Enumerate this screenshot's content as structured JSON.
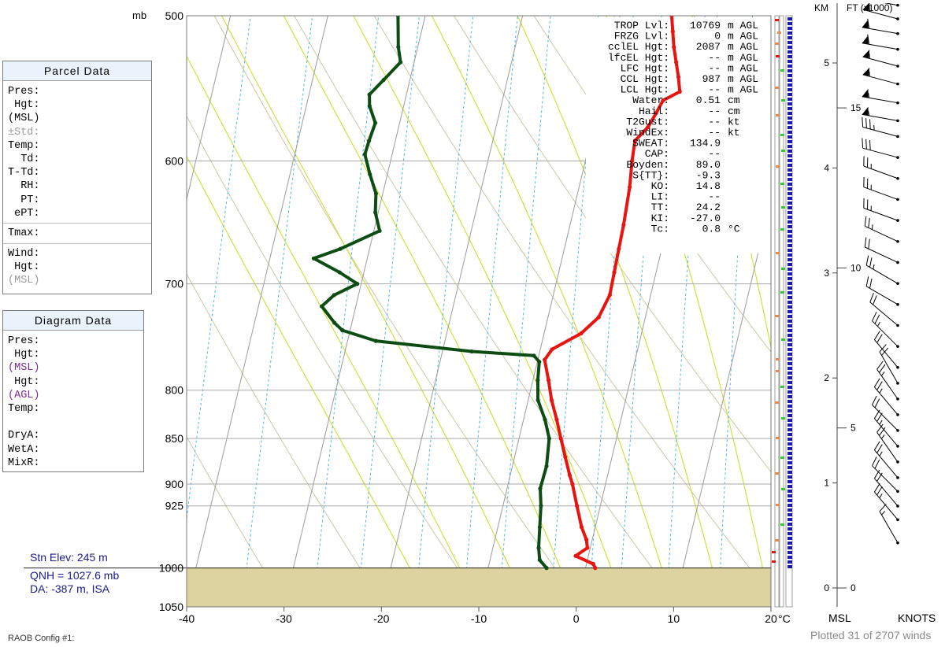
{
  "parcel_panel": {
    "title": "Parcel Data",
    "rows": [
      "Pres:",
      " Hgt:",
      "(MSL)",
      "±Std:",
      "Temp:",
      "  Td:",
      "T-Td:",
      "  RH:",
      "  PT:",
      " ePT:"
    ],
    "tmax": "Tmax:",
    "wind_rows": [
      "Wind:",
      " Hgt:",
      "(MSL)"
    ]
  },
  "diagram_panel": {
    "title": "Diagram Data",
    "rows": [
      "Pres:",
      " Hgt:",
      "(MSL)",
      " Hgt:",
      "(AGL)",
      "Temp:",
      "",
      "DryA:",
      "WetA:",
      "MixR:"
    ]
  },
  "station": {
    "elev": "Stn Elev: 245 m",
    "qnh": "QNH = 1027.6 mb",
    "da": "DA: -387 m, ISA"
  },
  "footer": {
    "config": "RAOB Config #1:",
    "plotted": "Plotted 31 of 2707 winds"
  },
  "colors": {
    "temperature": "#e8140f",
    "dewpoint": "#0d4d14",
    "ground": "#ddd3a0",
    "isobar": "#a9a9a9",
    "isotherm": "#9b9b9b",
    "dry_adiabat": "#c9c9a6",
    "moist_adiabat": "#cfe02c",
    "mixing_ratio": "#4db8e8",
    "station_text": "#1b1b8c",
    "highlight_purple": "#7d2a98"
  },
  "indices": [
    {
      "label": "TROP Lvl:",
      "value": "10769",
      "unit": "m AGL"
    },
    {
      "label": "FRZG Lvl:",
      "value": "0",
      "unit": "m AGL"
    },
    {
      "label": "cclEL Hgt:",
      "value": "2087",
      "unit": "m AGL"
    },
    {
      "label": "lfcEL Hgt:",
      "value": "--",
      "unit": "m AGL"
    },
    {
      "label": "LFC Hgt:",
      "value": "--",
      "unit": "m AGL"
    },
    {
      "label": "CCL Hgt:",
      "value": "987",
      "unit": "m AGL"
    },
    {
      "label": "LCL Hgt:",
      "value": "--",
      "unit": "m AGL"
    },
    {
      "label": "Water:",
      "value": "0.51",
      "unit": "cm"
    },
    {
      "label": "Hail:",
      "value": "--",
      "unit": "cm"
    },
    {
      "label": "T2Gust:",
      "value": "--",
      "unit": "kt"
    },
    {
      "label": "WindEx:",
      "value": "--",
      "unit": "kt"
    },
    {
      "label": "SWEAT:",
      "value": "134.9",
      "unit": ""
    },
    {
      "label": "CAP:",
      "value": "--",
      "unit": ""
    },
    {
      "label": "Boyden:",
      "value": "89.0",
      "unit": ""
    },
    {
      "label": "S{TT}:",
      "value": "-9.3",
      "unit": ""
    },
    {
      "label": "KO:",
      "value": "14.8",
      "unit": ""
    },
    {
      "label": "LI:",
      "value": "--",
      "unit": ""
    },
    {
      "label": "TT:",
      "value": "24.2",
      "unit": ""
    },
    {
      "label": "KI:",
      "value": "-27.0",
      "unit": ""
    },
    {
      "label": "Tc:",
      "value": "0.8",
      "unit": "°C"
    }
  ],
  "chart_data": {
    "type": "line",
    "title": "",
    "x_axis": {
      "unit_label": "°C",
      "ticks": [
        -40,
        -30,
        -20,
        -10,
        0,
        10,
        20
      ],
      "range": [
        -40,
        20
      ]
    },
    "y_axis": {
      "unit_label": "mb",
      "ticks": [
        500,
        600,
        700,
        800,
        850,
        900,
        925,
        1000,
        1050
      ],
      "range": [
        500,
        1050
      ],
      "scale": "log"
    },
    "skew_per_decade_pressure": 45,
    "surface_pressure": 1000,
    "series": [
      {
        "role": "temperature",
        "color": "#e8140f",
        "points": [
          [
            500,
            -4.7
          ],
          [
            510,
            -4.2
          ],
          [
            520,
            -3.7
          ],
          [
            530,
            -3.1
          ],
          [
            540,
            -2.5
          ],
          [
            550,
            -2.0
          ],
          [
            556,
            -3.5
          ],
          [
            565,
            -3.9
          ],
          [
            575,
            -4.4
          ],
          [
            585,
            -5.4
          ],
          [
            600,
            -5.2
          ],
          [
            620,
            -4.8
          ],
          [
            650,
            -4.5
          ],
          [
            670,
            -4.4
          ],
          [
            690,
            -4.3
          ],
          [
            710,
            -4.2
          ],
          [
            730,
            -4.8
          ],
          [
            745,
            -6.2
          ],
          [
            760,
            -8.8
          ],
          [
            770,
            -9.3
          ],
          [
            790,
            -8.4
          ],
          [
            810,
            -7.6
          ],
          [
            830,
            -6.6
          ],
          [
            850,
            -5.7
          ],
          [
            870,
            -4.8
          ],
          [
            890,
            -3.9
          ],
          [
            900,
            -3.4
          ],
          [
            925,
            -2.4
          ],
          [
            950,
            -1.4
          ],
          [
            965,
            -0.6
          ],
          [
            975,
            -0.3
          ],
          [
            985,
            -1.3
          ],
          [
            995,
            0.7
          ],
          [
            1000,
            1.0
          ]
        ]
      },
      {
        "role": "dewpoint",
        "color": "#0d4d14",
        "points": [
          [
            500,
            -32.8
          ],
          [
            520,
            -32.0
          ],
          [
            530,
            -31.4
          ],
          [
            542,
            -32.7
          ],
          [
            552,
            -33.8
          ],
          [
            560,
            -33.5
          ],
          [
            572,
            -32.5
          ],
          [
            585,
            -32.7
          ],
          [
            595,
            -32.8
          ],
          [
            610,
            -31.8
          ],
          [
            625,
            -30.7
          ],
          [
            640,
            -30.3
          ],
          [
            655,
            -29.4
          ],
          [
            670,
            -33.0
          ],
          [
            678,
            -35.5
          ],
          [
            690,
            -32.5
          ],
          [
            700,
            -30.4
          ],
          [
            710,
            -32.5
          ],
          [
            720,
            -33.5
          ],
          [
            735,
            -31.8
          ],
          [
            742,
            -30.8
          ],
          [
            752,
            -27.1
          ],
          [
            762,
            -17.0
          ],
          [
            766,
            -10.5
          ],
          [
            772,
            -9.8
          ],
          [
            790,
            -9.5
          ],
          [
            810,
            -9.0
          ],
          [
            830,
            -7.8
          ],
          [
            850,
            -6.9
          ],
          [
            880,
            -6.5
          ],
          [
            905,
            -6.6
          ],
          [
            925,
            -6.1
          ],
          [
            950,
            -5.7
          ],
          [
            975,
            -5.3
          ],
          [
            990,
            -4.9
          ],
          [
            1000,
            -4.0
          ]
        ]
      }
    ]
  },
  "wind_panel": {
    "left_axis_label": "KM",
    "right_axis_label": "FT (x1000)",
    "km_ticks": [
      0,
      1,
      2,
      3,
      4,
      5
    ],
    "ft_ticks": [
      0,
      5,
      10,
      15
    ],
    "bottom_left": "MSL",
    "bottom_right": "KNOTS",
    "barbs": [
      {
        "km": 0.43,
        "dir": 330,
        "kt": 15
      },
      {
        "km": 0.65,
        "dir": 320,
        "kt": 25
      },
      {
        "km": 0.78,
        "dir": 320,
        "kt": 20
      },
      {
        "km": 0.92,
        "dir": 315,
        "kt": 20
      },
      {
        "km": 1.05,
        "dir": 320,
        "kt": 25
      },
      {
        "km": 1.2,
        "dir": 325,
        "kt": 25
      },
      {
        "km": 1.35,
        "dir": 320,
        "kt": 25
      },
      {
        "km": 1.5,
        "dir": 315,
        "kt": 20
      },
      {
        "km": 1.65,
        "dir": 320,
        "kt": 25
      },
      {
        "km": 1.8,
        "dir": 325,
        "kt": 25
      },
      {
        "km": 1.95,
        "dir": 330,
        "kt": 20
      },
      {
        "km": 2.1,
        "dir": 320,
        "kt": 20
      },
      {
        "km": 2.3,
        "dir": 315,
        "kt": 25
      },
      {
        "km": 2.5,
        "dir": 310,
        "kt": 20
      },
      {
        "km": 2.7,
        "dir": 300,
        "kt": 20
      },
      {
        "km": 2.9,
        "dir": 300,
        "kt": 25
      },
      {
        "km": 3.1,
        "dir": 295,
        "kt": 20
      },
      {
        "km": 3.3,
        "dir": 295,
        "kt": 25
      },
      {
        "km": 3.5,
        "dir": 290,
        "kt": 25
      },
      {
        "km": 3.7,
        "dir": 290,
        "kt": 25
      },
      {
        "km": 3.9,
        "dir": 290,
        "kt": 25
      },
      {
        "km": 4.1,
        "dir": 285,
        "kt": 30
      },
      {
        "km": 4.3,
        "dir": 285,
        "kt": 35
      },
      {
        "km": 4.45,
        "dir": 280,
        "kt": 55
      },
      {
        "km": 4.62,
        "dir": 280,
        "kt": 55
      },
      {
        "km": 4.8,
        "dir": 285,
        "kt": 55
      },
      {
        "km": 4.97,
        "dir": 285,
        "kt": 55
      },
      {
        "km": 5.13,
        "dir": 280,
        "kt": 60
      },
      {
        "km": 5.28,
        "dir": 280,
        "kt": 60
      },
      {
        "km": 5.42,
        "dir": 285,
        "kt": 60
      },
      {
        "km": 5.55,
        "dir": 280,
        "kt": 55
      }
    ]
  }
}
